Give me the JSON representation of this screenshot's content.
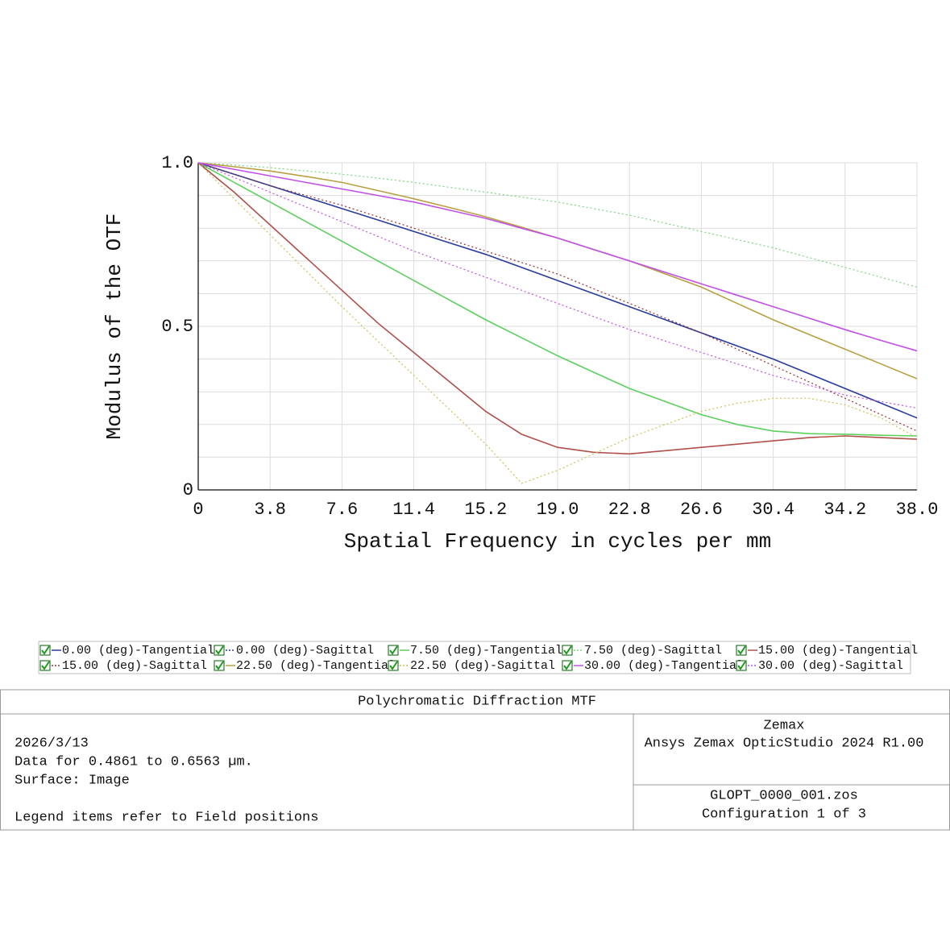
{
  "chart_data": {
    "type": "line",
    "xlabel": "Spatial Frequency in cycles per mm",
    "ylabel": "Modulus of the OTF",
    "x": [
      0,
      1.9,
      3.8,
      5.7,
      7.6,
      9.5,
      11.4,
      13.3,
      15.2,
      17.1,
      19,
      20.9,
      22.8,
      24.7,
      26.6,
      28.5,
      30.4,
      32.3,
      34.2,
      36.1,
      38
    ],
    "xlim": [
      0,
      38
    ],
    "xticks": [
      0,
      3.8,
      7.6,
      11.4,
      15.2,
      {
        "value": 19,
        "label": "19.0"
      },
      22.8,
      26.6,
      30.4,
      34.2,
      {
        "value": 38,
        "label": "38.0"
      }
    ],
    "ylim": [
      0,
      1
    ],
    "yticks": [
      0,
      0.5,
      {
        "value": 1,
        "label": "1.0"
      }
    ],
    "ygrid": [
      0.1,
      0.2,
      0.3,
      0.4,
      0.5,
      0.6,
      0.7,
      0.8,
      0.9,
      1
    ],
    "grid": true,
    "series": [
      {
        "name": "0.00 (deg)-Tangential",
        "color": "#2a3d9e",
        "style": "solid",
        "values": [
          1,
          0.965,
          0.93,
          0.895,
          0.86,
          0.825,
          0.79,
          0.755,
          0.72,
          0.68,
          0.64,
          0.6,
          0.56,
          0.52,
          0.48,
          0.44,
          0.4,
          0.355,
          0.31,
          0.265,
          0.22
        ]
      },
      {
        "name": "0.00 (deg)-Sagittal",
        "color": "#2a3d9e",
        "style": "dotted",
        "values": [
          1,
          0.965,
          0.93,
          0.895,
          0.86,
          0.825,
          0.79,
          0.755,
          0.72,
          0.68,
          0.64,
          0.6,
          0.56,
          0.52,
          0.48,
          0.44,
          0.4,
          0.355,
          0.31,
          0.265,
          0.22
        ]
      },
      {
        "name": "7.50 (deg)-Tangential",
        "color": "#5ccf5c",
        "style": "solid",
        "values": [
          1,
          0.94,
          0.88,
          0.82,
          0.76,
          0.7,
          0.64,
          0.58,
          0.52,
          0.465,
          0.41,
          0.36,
          0.31,
          0.27,
          0.23,
          0.2,
          0.18,
          0.172,
          0.17,
          0.167,
          0.165
        ]
      },
      {
        "name": "7.50 (deg)-Sagittal",
        "color": "#7cd67c",
        "style": "dotted",
        "values": [
          1,
          0.993,
          0.985,
          0.975,
          0.965,
          0.953,
          0.94,
          0.925,
          0.91,
          0.895,
          0.88,
          0.86,
          0.84,
          0.815,
          0.79,
          0.765,
          0.74,
          0.71,
          0.68,
          0.65,
          0.62
        ]
      },
      {
        "name": "15.00 (deg)-Tangential",
        "color": "#b0504a",
        "style": "solid",
        "values": [
          1,
          0.91,
          0.81,
          0.71,
          0.61,
          0.51,
          0.42,
          0.33,
          0.24,
          0.17,
          0.13,
          0.115,
          0.11,
          0.12,
          0.13,
          0.14,
          0.15,
          0.16,
          0.165,
          0.16,
          0.155
        ]
      },
      {
        "name": "15.00 (deg)-Sagittal",
        "color": "#9a3030",
        "style": "dotted",
        "values": [
          1,
          0.965,
          0.93,
          0.9,
          0.87,
          0.835,
          0.8,
          0.765,
          0.73,
          0.695,
          0.66,
          0.615,
          0.57,
          0.525,
          0.48,
          0.43,
          0.38,
          0.33,
          0.28,
          0.23,
          0.18
        ]
      },
      {
        "name": "22.50 (deg)-Tangential",
        "color": "#b8a040",
        "style": "solid",
        "values": [
          1,
          0.988,
          0.975,
          0.958,
          0.94,
          0.915,
          0.89,
          0.863,
          0.835,
          0.803,
          0.77,
          0.735,
          0.7,
          0.66,
          0.62,
          0.57,
          0.52,
          0.475,
          0.43,
          0.385,
          0.34
        ]
      },
      {
        "name": "22.50 (deg)-Sagittal",
        "color": "#cfc050",
        "style": "dotted",
        "values": [
          1,
          0.89,
          0.78,
          0.67,
          0.56,
          0.455,
          0.35,
          0.245,
          0.14,
          0.02,
          0.06,
          0.11,
          0.16,
          0.2,
          0.24,
          0.265,
          0.28,
          0.28,
          0.26,
          0.22,
          0.16
        ]
      },
      {
        "name": "30.00 (deg)-Tangential",
        "color": "#c050e8",
        "style": "solid",
        "values": [
          1,
          0.98,
          0.96,
          0.94,
          0.92,
          0.9,
          0.88,
          0.855,
          0.83,
          0.8,
          0.77,
          0.735,
          0.7,
          0.665,
          0.63,
          0.595,
          0.56,
          0.525,
          0.49,
          0.457,
          0.425
        ]
      },
      {
        "name": "30.00 (deg)-Sagittal",
        "color": "#c050e8",
        "style": "dotted",
        "values": [
          1,
          0.955,
          0.91,
          0.865,
          0.82,
          0.775,
          0.73,
          0.69,
          0.65,
          0.61,
          0.57,
          0.53,
          0.49,
          0.455,
          0.42,
          0.385,
          0.35,
          0.32,
          0.29,
          0.27,
          0.25
        ]
      }
    ]
  },
  "info": {
    "title": "Polychromatic Diffraction MTF",
    "left": [
      "2026/3/13",
      "Data for 0.4861 to 0.6563 µm.",
      "Surface: Image",
      "Legend items refer to Field positions"
    ],
    "right_top": [
      "Zemax",
      "Ansys Zemax OpticStudio 2024 R1.00"
    ],
    "right_bottom": [
      "GLOPT_0000_001.zos",
      "Configuration 1 of 3"
    ]
  }
}
